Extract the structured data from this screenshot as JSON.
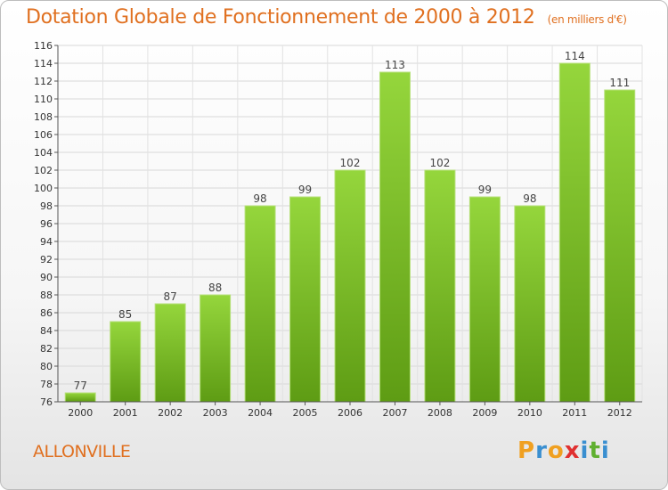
{
  "chart_data": {
    "type": "bar",
    "title": "Dotation Globale de Fonctionnement de 2000 à 2012",
    "subtitle": "(en milliers d'€)",
    "categories": [
      "2000",
      "2001",
      "2002",
      "2003",
      "2004",
      "2005",
      "2006",
      "2007",
      "2008",
      "2009",
      "2010",
      "2011",
      "2012"
    ],
    "values": [
      77,
      85,
      87,
      88,
      98,
      99,
      102,
      113,
      102,
      99,
      98,
      114,
      111
    ],
    "ylim": [
      76,
      116
    ],
    "yticks": [
      76,
      78,
      80,
      82,
      84,
      86,
      88,
      90,
      92,
      94,
      96,
      98,
      100,
      102,
      104,
      106,
      108,
      110,
      112,
      114,
      116
    ],
    "grid": true,
    "bar_color": "#7cc42b"
  },
  "place": "ALLONVILLE",
  "logo": {
    "letters": [
      "P",
      "r",
      "o",
      "x",
      "i",
      "t",
      "i"
    ],
    "colors": [
      "#f0a020",
      "#3a8fd0",
      "#f0a020",
      "#e03030",
      "#3a8fd0",
      "#60b030",
      "#3a8fd0"
    ]
  }
}
